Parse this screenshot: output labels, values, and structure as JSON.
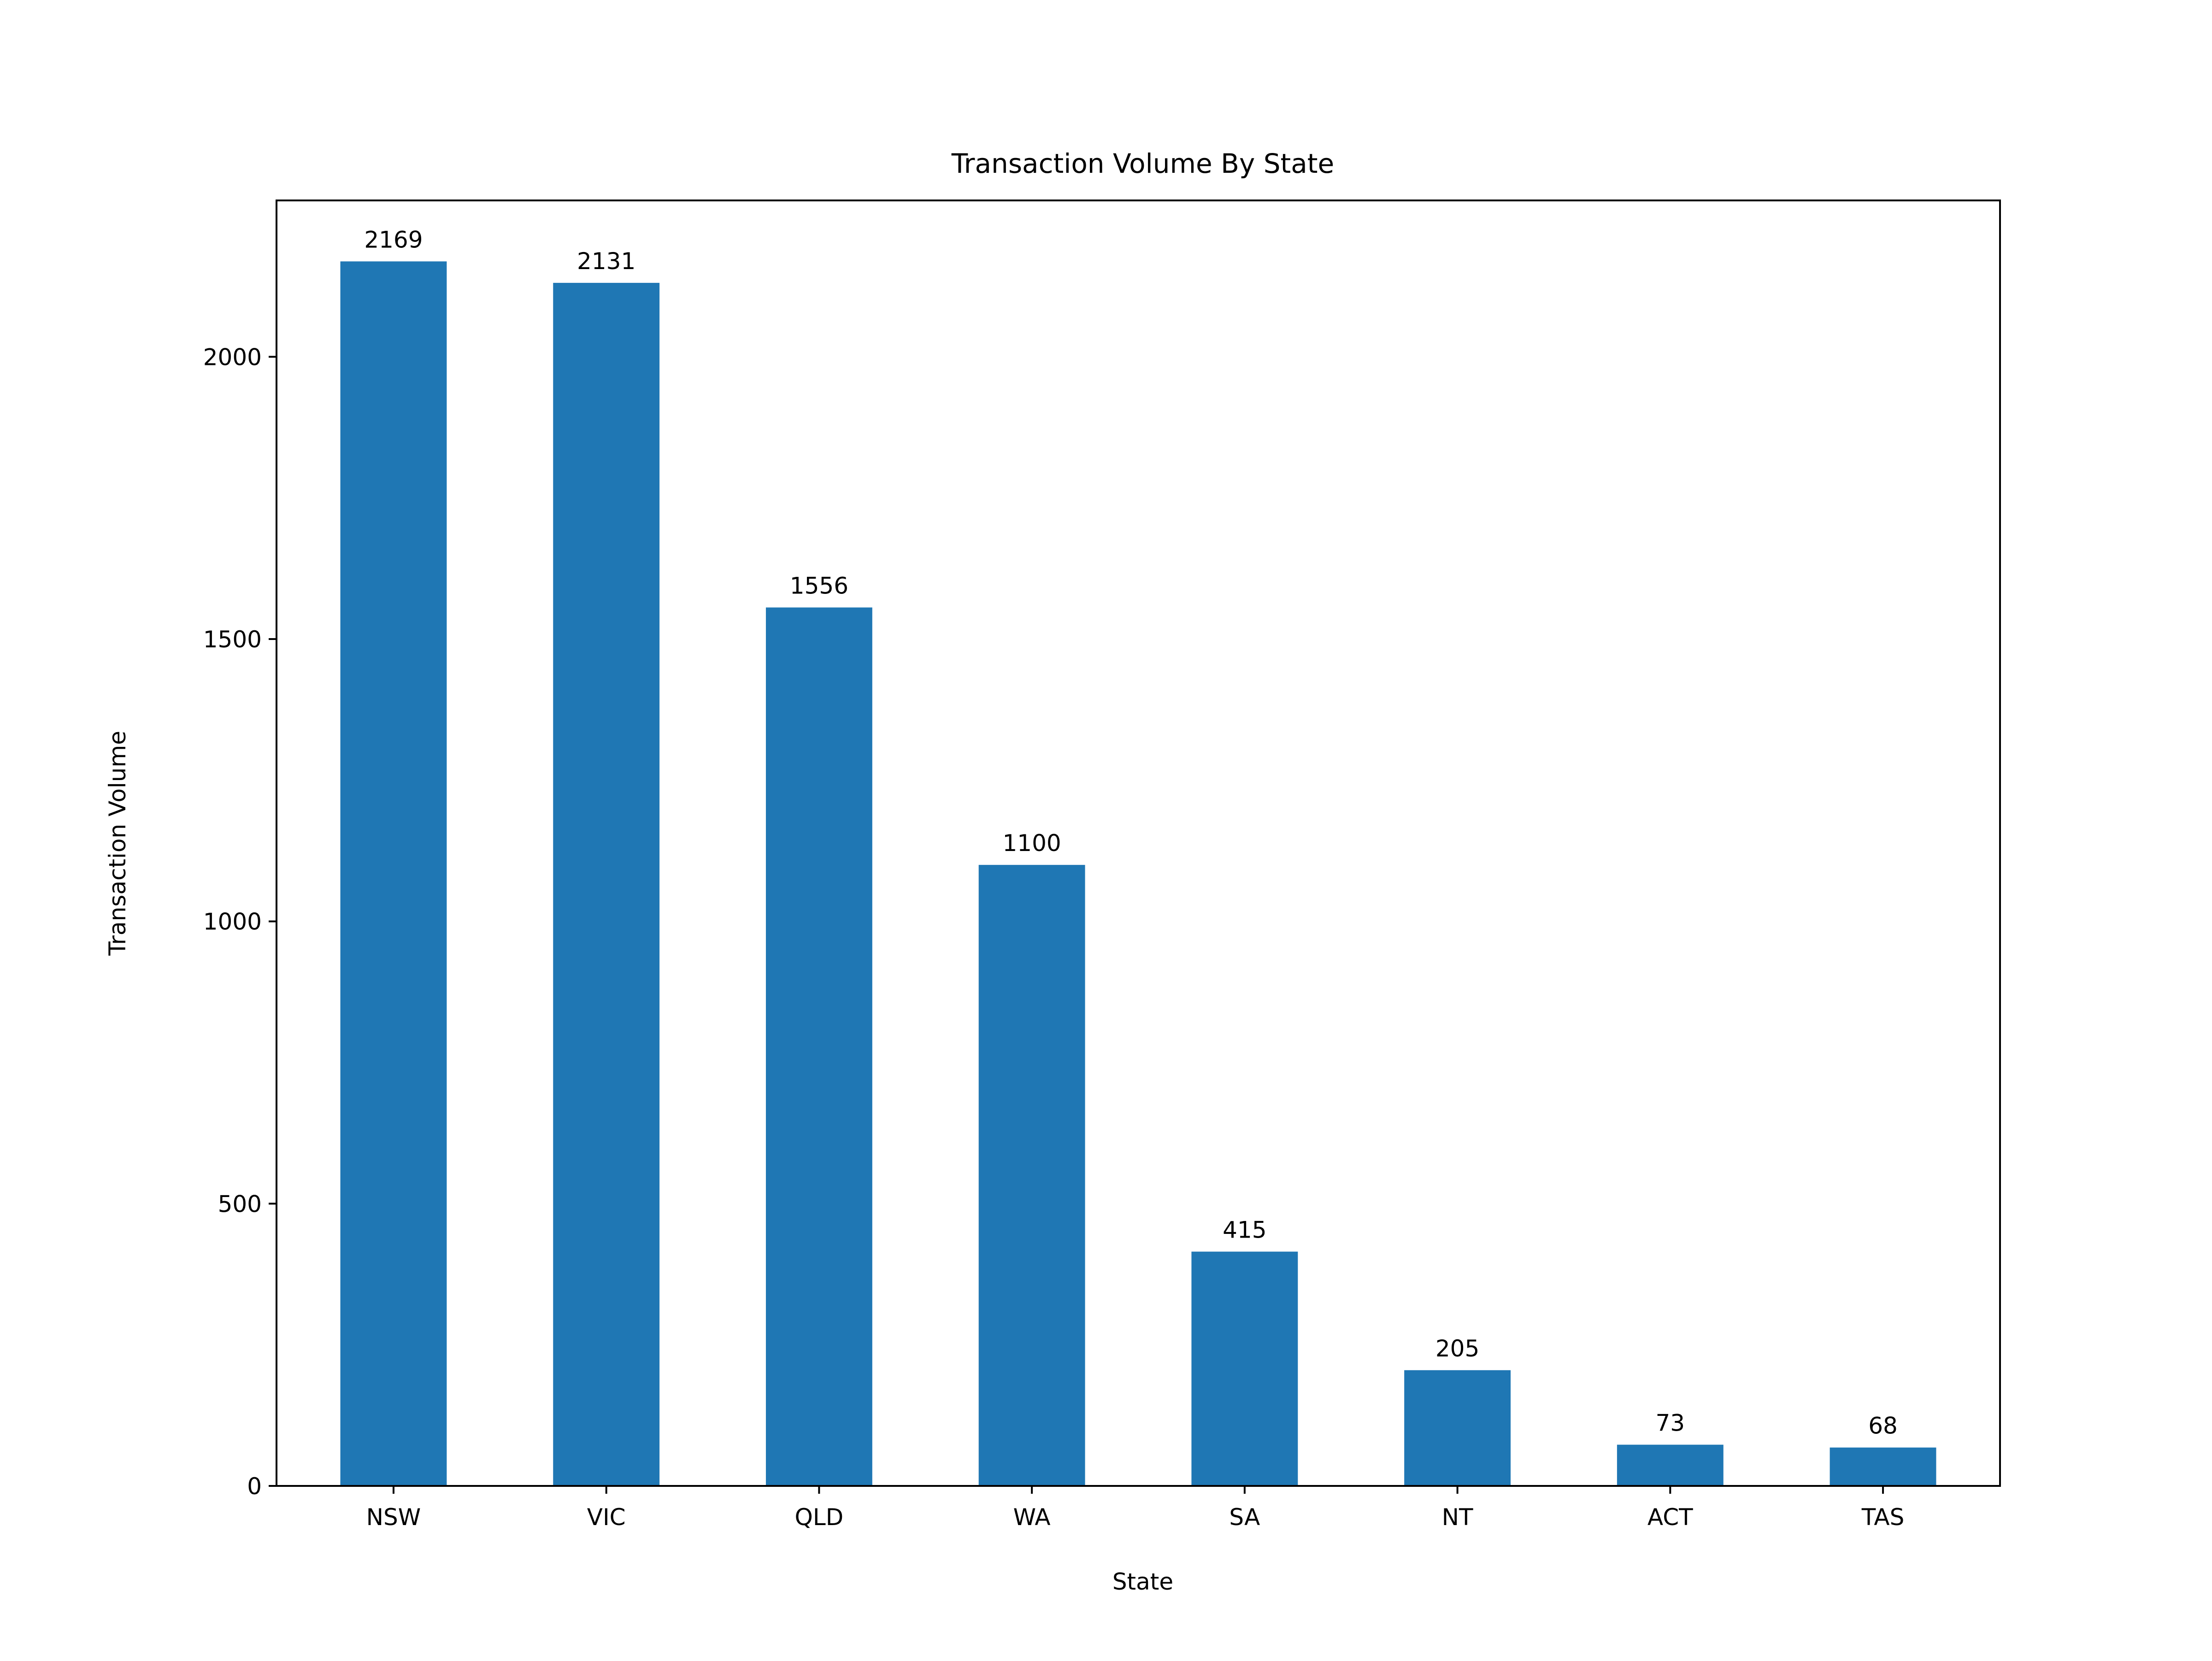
{
  "chart_data": {
    "type": "bar",
    "title": "Transaction Volume By State",
    "xlabel": "State",
    "ylabel": "Transaction Volume",
    "categories": [
      "NSW",
      "VIC",
      "QLD",
      "WA",
      "SA",
      "NT",
      "ACT",
      "TAS"
    ],
    "values": [
      2169,
      2131,
      1556,
      1100,
      415,
      205,
      73,
      68
    ],
    "data_labels": [
      "2169",
      "2131",
      "1556",
      "1100",
      "415",
      "205",
      "73",
      "68"
    ],
    "ylim": [
      0,
      2277
    ],
    "yticks": [
      0,
      500,
      1000,
      1500,
      2000
    ],
    "ytick_labels": [
      "0",
      "500",
      "1000",
      "1500",
      "2000"
    ],
    "bar_color": "#1f77b4",
    "grid": false,
    "legend": "none"
  }
}
